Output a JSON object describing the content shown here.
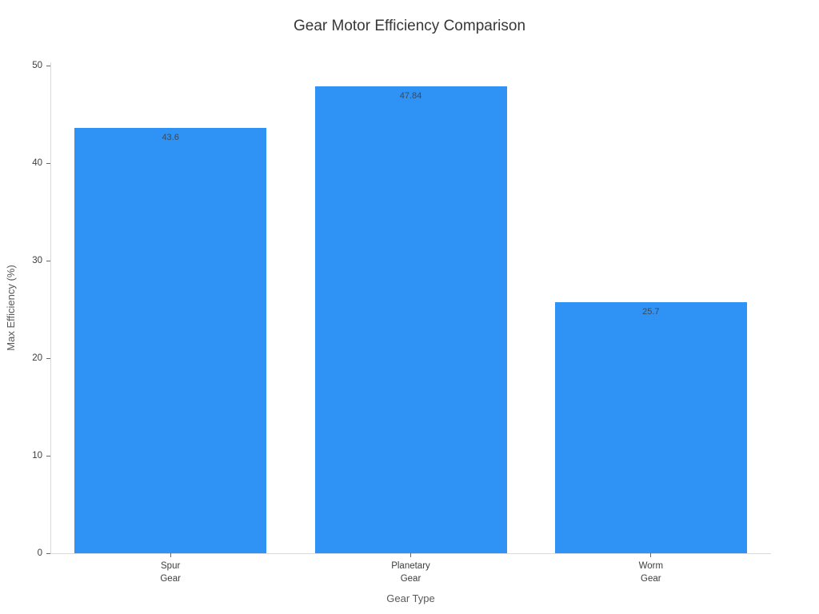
{
  "chart_data": {
    "type": "bar",
    "title": "Gear Motor Efficiency Comparison",
    "xlabel": "Gear Type",
    "ylabel": "Max Efficiency (%)",
    "categories": [
      "Spur Gear",
      "Planetary Gear",
      "Worm Gear"
    ],
    "category_labels": [
      "Spur\nGear",
      "Planetary\nGear",
      "Worm\nGear"
    ],
    "values": [
      43.6,
      47.84,
      25.7
    ],
    "value_labels": [
      "43.6",
      "47.84",
      "25.7"
    ],
    "ylim": [
      0,
      50.33
    ],
    "yticks": [
      0,
      10,
      20,
      30,
      40,
      50
    ],
    "grid": false,
    "legend": "none",
    "colors": {
      "bar": "#2F93F5",
      "axis_line": "#D9D9D9",
      "tick_mark": "#666666",
      "title_text": "#383838",
      "tick_text": "#3d3d3d",
      "axis_title_text": "#595959",
      "value_text": "#36495e"
    }
  }
}
